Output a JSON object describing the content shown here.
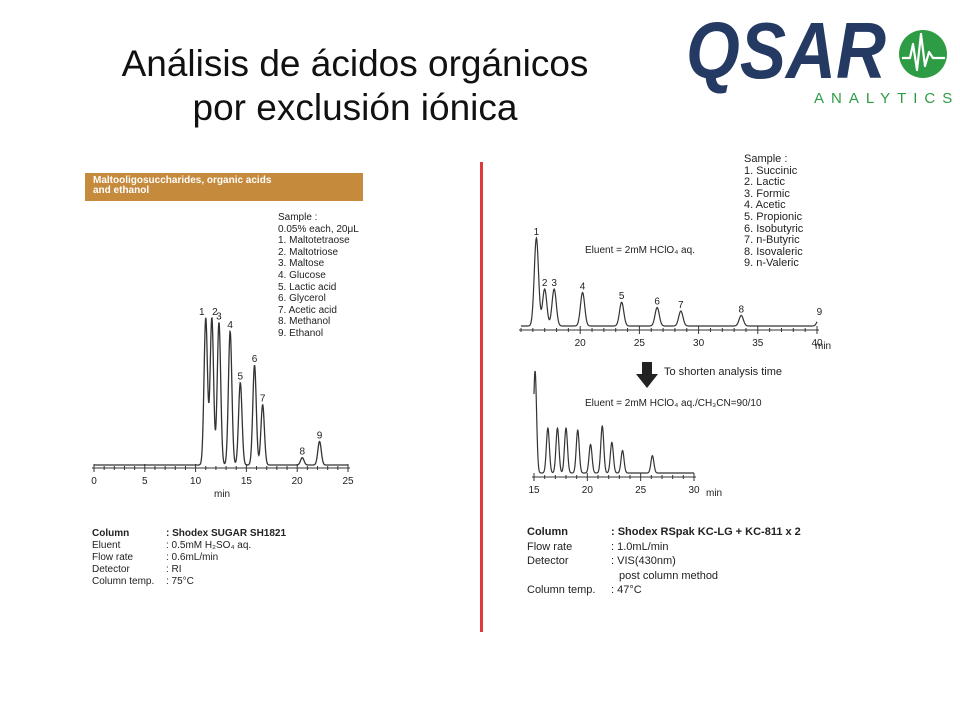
{
  "slide": {
    "title_line1": "Análisis de ácidos orgánicos",
    "title_line2": "por exclusión iónica"
  },
  "logo": {
    "brand": "QSAR",
    "tagline": "ANALYTICS",
    "colors": {
      "navy": "#243a63",
      "green": "#2e9b45"
    }
  },
  "colors": {
    "accent_band": "#c68a3c",
    "divider": "#e0393b",
    "trace": "#333333"
  },
  "left_panel": {
    "band_title": "Maltooligosuccharides, organic acids\nand ethanol",
    "sample_header": "Sample :",
    "sample_conc": "0.05% each, 20μL",
    "samples": [
      "1. Maltotetraose",
      "2. Maltotriose",
      "3. Maltose",
      "4. Glucose",
      "5. Lactic acid",
      "6. Glycerol",
      "7. Acetic acid",
      "8. Methanol",
      "9. Ethanol"
    ],
    "conditions": [
      {
        "label": "Column",
        "value": ": Shodex SUGAR SH1821",
        "bold": true
      },
      {
        "label": "Eluent",
        "value": ": 0.5mM H₂SO₄ aq."
      },
      {
        "label": "Flow rate",
        "value": ": 0.6mL/min"
      },
      {
        "label": "Detector",
        "value": ": RI"
      },
      {
        "label": "Column temp.",
        "value": ": 75°C"
      }
    ]
  },
  "right_panel": {
    "sample_header": "Sample :",
    "samples": [
      "1. Succinic",
      "2. Lactic",
      "3. Formic",
      "4. Acetic",
      "5. Propionic",
      "6. Isobutyric",
      "7. n-Butyric",
      "8. Isovaleric",
      "9. n-Valeric"
    ],
    "eluent_top": "Eluent = 2mM HClO₄ aq.",
    "arrow_caption": "To shorten analysis time",
    "eluent_bottom": "Eluent = 2mM HClO₄ aq./CH₃CN=90/10",
    "conditions": [
      {
        "label": "Column",
        "value": ": Shodex RSpak KC-LG + KC-811 x 2",
        "bold": true
      },
      {
        "label": "Flow rate",
        "value": ": 1.0mL/min"
      },
      {
        "label": "Detector",
        "value": ": VIS(430nm)"
      },
      {
        "label": "",
        "value": "post column method"
      },
      {
        "label": "Column temp.",
        "value": ": 47°C"
      }
    ]
  },
  "chart_data": [
    {
      "type": "line",
      "xlabel": "min",
      "xlim": [
        0,
        25
      ],
      "ticks": [
        0,
        5,
        10,
        15,
        20,
        25
      ],
      "peaks": [
        {
          "label": "1",
          "x": 11.0,
          "h": 1.0
        },
        {
          "label": "2",
          "x": 11.6,
          "h": 1.0
        },
        {
          "label": "3",
          "x": 12.3,
          "h": 0.97
        },
        {
          "label": "4",
          "x": 13.4,
          "h": 0.91
        },
        {
          "label": "5",
          "x": 14.4,
          "h": 0.56
        },
        {
          "label": "6",
          "x": 15.8,
          "h": 0.68
        },
        {
          "label": "7",
          "x": 16.6,
          "h": 0.41
        },
        {
          "label": "8",
          "x": 20.5,
          "h": 0.05
        },
        {
          "label": "9",
          "x": 22.2,
          "h": 0.16
        }
      ]
    },
    {
      "type": "line",
      "xlabel": "min",
      "xlim": [
        15,
        40
      ],
      "ticks": [
        20,
        25,
        30,
        35,
        40
      ],
      "peaks": [
        {
          "label": "1",
          "x": 16.3,
          "h": 1.0
        },
        {
          "label": "2",
          "x": 17.0,
          "h": 0.42
        },
        {
          "label": "3",
          "x": 17.8,
          "h": 0.42
        },
        {
          "label": "4",
          "x": 20.2,
          "h": 0.38
        },
        {
          "label": "5",
          "x": 23.5,
          "h": 0.27
        },
        {
          "label": "6",
          "x": 26.5,
          "h": 0.21
        },
        {
          "label": "7",
          "x": 28.5,
          "h": 0.17
        },
        {
          "label": "8",
          "x": 33.6,
          "h": 0.12
        },
        {
          "label": "9",
          "x": 40.2,
          "h": 0.09
        }
      ]
    },
    {
      "type": "line",
      "xlabel": "min",
      "xlim": [
        15,
        30
      ],
      "ticks": [
        15,
        20,
        25,
        30
      ],
      "peaks": [
        {
          "x": 15.1,
          "h": 1.0
        },
        {
          "x": 16.3,
          "h": 0.44
        },
        {
          "x": 17.2,
          "h": 0.44
        },
        {
          "x": 18.0,
          "h": 0.44
        },
        {
          "x": 19.1,
          "h": 0.42
        },
        {
          "x": 20.3,
          "h": 0.28
        },
        {
          "x": 21.4,
          "h": 0.46
        },
        {
          "x": 22.3,
          "h": 0.3
        },
        {
          "x": 23.3,
          "h": 0.22
        },
        {
          "x": 26.1,
          "h": 0.17
        }
      ]
    }
  ]
}
